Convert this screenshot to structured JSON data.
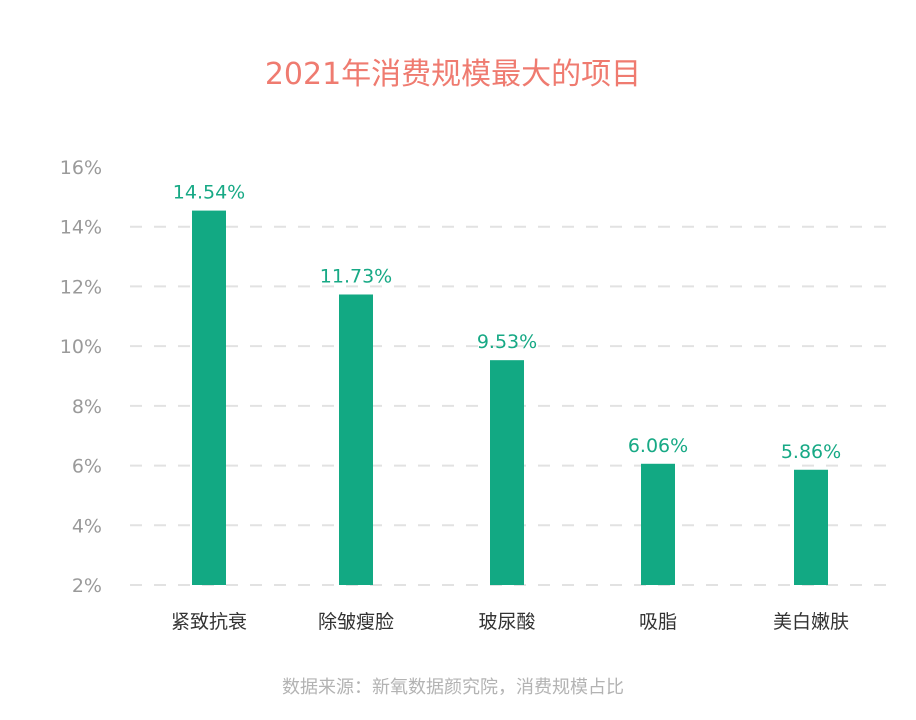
{
  "chart_data": {
    "type": "bar",
    "title": "2021年消费规模最大的项目",
    "categories": [
      "紧致抗衰",
      "除皱瘦脸",
      "玻尿酸",
      "吸脂",
      "美白嫩肤"
    ],
    "values": [
      14.54,
      11.73,
      9.53,
      6.06,
      5.86
    ],
    "data_labels": [
      "14.54%",
      "11.73%",
      "9.53%",
      "6.06%",
      "5.86%"
    ],
    "y_ticks": [
      "2%",
      "4%",
      "6%",
      "8%",
      "10%",
      "12%",
      "14%",
      "16%"
    ],
    "ylim": [
      2,
      16
    ],
    "xlabel": "",
    "ylabel": "",
    "grid": "horizontal dashed",
    "source": "数据来源：新氧数据颜究院，消费规模占比",
    "colors": {
      "bar": "#12a983",
      "title": "#ef7b70",
      "label": "#17a985"
    }
  }
}
